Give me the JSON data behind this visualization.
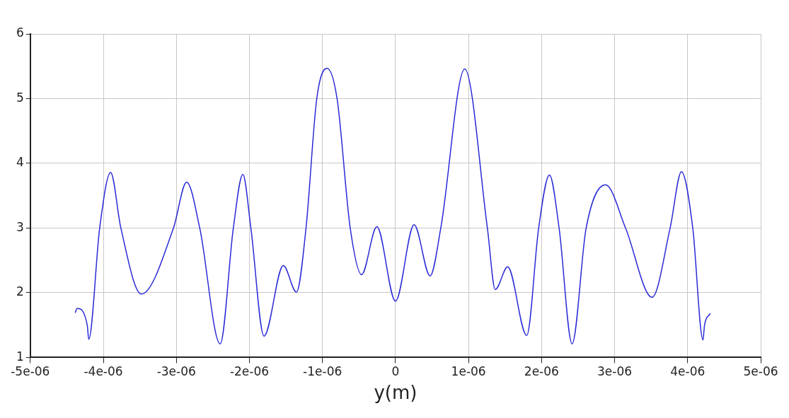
{
  "chart_data": {
    "type": "line",
    "xlabel": "y(m)",
    "xlim": [
      -5e-06,
      5e-06
    ],
    "xticks": [
      {
        "value": -5e-06,
        "label": "-5e-06"
      },
      {
        "value": -4e-06,
        "label": "-4e-06"
      },
      {
        "value": -3e-06,
        "label": "-3e-06"
      },
      {
        "value": -2e-06,
        "label": "-2e-06"
      },
      {
        "value": -1e-06,
        "label": "-1e-06"
      },
      0,
      {
        "value": 1e-06,
        "label": "1e-06"
      },
      {
        "value": 2e-06,
        "label": "2e-06"
      },
      {
        "value": 3e-06,
        "label": "3e-06"
      },
      {
        "value": 4e-06,
        "label": "4e-06"
      },
      {
        "value": 5e-06,
        "label": "5e-06"
      }
    ],
    "ylim": [
      1,
      6
    ],
    "yticks": [
      1,
      2,
      3,
      4,
      5,
      6
    ],
    "grid": true,
    "marker": "none",
    "line_style": "solid",
    "series": [
      {
        "color": "#2a2ad6",
        "x": [
          -4.385e-06,
          -4.36e-06,
          -4.22e-06,
          -4.2e-06,
          -4.05e-06,
          -3.9e-06,
          -3.76e-06,
          -3.48e-06,
          -3.04e-06,
          -2.86e-06,
          -2.68e-06,
          -2.4e-06,
          -2.22e-06,
          -2.09e-06,
          -1.98e-06,
          -1.8e-06,
          -1.536e-06,
          -1.356e-06,
          -1.225e-06,
          -1.078e-06,
          -9.38e-07,
          -8e-07,
          -6.2e-07,
          -4.64e-07,
          -2.55e-07,
          0,
          2.55e-07,
          4.74e-07,
          6.2e-07,
          9.48e-07,
          1.258e-06,
          1.366e-06,
          1.536e-06,
          1.797e-06,
          1.96e-06,
          2.108e-06,
          2.24e-06,
          2.418e-06,
          2.61e-06,
          2.876e-06,
          3.15e-06,
          3.513e-06,
          3.76e-06,
          3.915e-06,
          4.07e-06,
          4.21e-06,
          4.23e-06,
          4.31e-06
        ],
        "values": [
          1.69,
          1.76,
          1.5,
          1.28,
          3,
          3.86,
          3,
          1.98,
          3,
          3.71,
          3,
          1.21,
          3,
          3.83,
          3,
          1.33,
          2.42,
          2.01,
          3,
          5,
          5.47,
          5,
          3,
          2.28,
          3.02,
          1.87,
          3.05,
          2.26,
          3,
          5.46,
          3,
          2.05,
          2.4,
          1.34,
          3,
          3.82,
          3,
          1.21,
          3,
          3.67,
          3,
          1.93,
          3,
          3.87,
          3,
          1.27,
          1.49,
          1.68
        ]
      }
    ]
  }
}
